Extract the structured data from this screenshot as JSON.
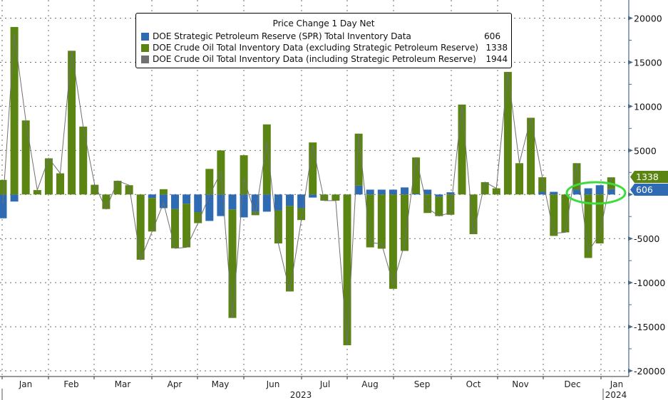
{
  "colors": {
    "spr": "#2e6bb3",
    "crude_ex_spr": "#5b8512",
    "crude_incl_spr": "#707070",
    "highlight": "#3ddc3d",
    "axis": "#4a6a88",
    "grid": "#6b6b6b"
  },
  "chart_data": {
    "type": "bar",
    "title": "Price Change 1 Day Net",
    "stacked": true,
    "ylim": [
      -20000,
      20000
    ],
    "yticks": [
      20000,
      15000,
      10000,
      5000,
      0,
      -5000,
      -10000,
      -15000,
      -20000
    ],
    "ytick_labels": [
      "20000",
      "15000",
      "10000",
      "5000",
      "0",
      "-5000",
      "-10000",
      "-15000",
      "-20000"
    ],
    "yaxis_position": "right",
    "grid": true,
    "legend_placement": "top-center",
    "x_month_labels": [
      "Jan",
      "Feb",
      "Mar",
      "Apr",
      "May",
      "Jun",
      "Jul",
      "Aug",
      "Sep",
      "Oct",
      "Nov",
      "Dec",
      "Jan"
    ],
    "x_year_labels": [
      "2023",
      "2024"
    ],
    "x_weeks": 54,
    "series": [
      {
        "name": "DOE Strategic Petroleum Reserve (SPR) Total Inventory Data",
        "type": "bar",
        "last_value": "606",
        "values": [
          -2700,
          -800,
          0,
          0,
          0,
          0,
          0,
          0,
          0,
          0,
          0,
          0,
          0,
          -400,
          -1550,
          -1650,
          -1050,
          -2000,
          -3000,
          -2450,
          -1700,
          -2600,
          -1950,
          -1950,
          -1800,
          -1300,
          -1550,
          -350,
          0,
          0,
          0,
          1000,
          550,
          550,
          550,
          800,
          100,
          550,
          -250,
          250,
          0,
          0,
          0,
          0,
          0,
          0,
          0,
          300,
          300,
          0,
          550,
          700,
          1050,
          606
        ]
      },
      {
        "name": "DOE Crude Oil Total Inventory Data (excluding Strategic Petroleum Reserve)",
        "type": "bar",
        "last_value": "1338",
        "values": [
          1650,
          19000,
          8400,
          500,
          4100,
          2400,
          16300,
          7700,
          1100,
          -1650,
          1550,
          1050,
          -7400,
          -3800,
          600,
          -4450,
          -4950,
          -1250,
          2900,
          5000,
          -12300,
          4450,
          -400,
          7950,
          -3750,
          -9700,
          -1350,
          5900,
          -700,
          -700,
          -17100,
          5900,
          -6000,
          -6150,
          -10700,
          -6400,
          4100,
          -2100,
          -2200,
          -2300,
          10200,
          -4500,
          1400,
          700,
          13900,
          3550,
          8700,
          1650,
          -4700,
          -4300,
          3000,
          -7200,
          -5550,
          1338
        ]
      },
      {
        "name": "DOE Crude Oil Total Inventory Data (including Strategic Petroleum Reserve)",
        "type": "line",
        "last_value": "1944",
        "values": "sum of the two bar series per week"
      }
    ],
    "annotations": [
      "green ellipse highlighting last four weeks of positive SPR changes"
    ]
  }
}
